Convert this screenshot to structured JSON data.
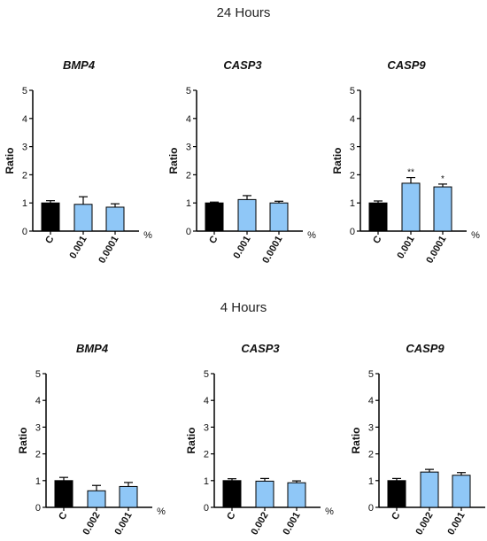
{
  "figure": {
    "section_titles": [
      "24 Hours",
      "4 Hours"
    ]
  },
  "colors": {
    "control": "#000000",
    "treatment": "#8fc7f7",
    "axis": "#000000"
  },
  "chart_data": [
    {
      "type": "bar",
      "title": "BMP4",
      "section": "24 Hours",
      "row": 0,
      "col": 0,
      "categories": [
        "C",
        "0.001",
        "0.0001"
      ],
      "values": [
        1.0,
        0.95,
        0.85
      ],
      "errors": [
        0.08,
        0.27,
        0.12
      ],
      "significance": [
        "",
        "",
        ""
      ],
      "ylabel": "Ratio",
      "unit": "%",
      "ylim": [
        0,
        5
      ],
      "yticks": [
        0,
        1,
        2,
        3,
        4,
        5
      ]
    },
    {
      "type": "bar",
      "title": "CASP3",
      "section": "24 Hours",
      "row": 0,
      "col": 1,
      "categories": [
        "C",
        "0.001",
        "0.0001"
      ],
      "values": [
        1.0,
        1.12,
        1.0
      ],
      "errors": [
        0.03,
        0.14,
        0.06
      ],
      "significance": [
        "",
        "",
        ""
      ],
      "ylabel": "Ratio",
      "unit": "%",
      "ylim": [
        0,
        5
      ],
      "yticks": [
        0,
        1,
        2,
        3,
        4,
        5
      ]
    },
    {
      "type": "bar",
      "title": "CASP9",
      "section": "24 Hours",
      "row": 0,
      "col": 2,
      "categories": [
        "C",
        "0.001",
        "0.0001"
      ],
      "values": [
        1.0,
        1.7,
        1.57
      ],
      "errors": [
        0.07,
        0.2,
        0.1
      ],
      "significance": [
        "",
        "**",
        "*"
      ],
      "ylabel": "Ratio",
      "unit": "%",
      "ylim": [
        0,
        5
      ],
      "yticks": [
        0,
        1,
        2,
        3,
        4,
        5
      ]
    },
    {
      "type": "bar",
      "title": "BMP4",
      "section": "4 Hours",
      "row": 1,
      "col": 0,
      "categories": [
        "C",
        "0.002",
        "0.001"
      ],
      "values": [
        1.0,
        0.62,
        0.78
      ],
      "errors": [
        0.12,
        0.2,
        0.15
      ],
      "significance": [
        "",
        "",
        ""
      ],
      "ylabel": "Ratio",
      "unit": "%",
      "ylim": [
        0,
        5
      ],
      "yticks": [
        0,
        1,
        2,
        3,
        4,
        5
      ]
    },
    {
      "type": "bar",
      "title": "CASP3",
      "section": "4 Hours",
      "row": 1,
      "col": 1,
      "categories": [
        "C",
        "0.002",
        "0.001"
      ],
      "values": [
        1.0,
        0.98,
        0.92
      ],
      "errors": [
        0.07,
        0.1,
        0.07
      ],
      "significance": [
        "",
        "",
        ""
      ],
      "ylabel": "Ratio",
      "unit": "%",
      "ylim": [
        0,
        5
      ],
      "yticks": [
        0,
        1,
        2,
        3,
        4,
        5
      ]
    },
    {
      "type": "bar",
      "title": "CASP9",
      "section": "4 Hours",
      "row": 1,
      "col": 2,
      "categories": [
        "C",
        "0.002",
        "0.001"
      ],
      "values": [
        1.0,
        1.32,
        1.2
      ],
      "errors": [
        0.08,
        0.1,
        0.1
      ],
      "significance": [
        "",
        "",
        ""
      ],
      "ylabel": "Ratio",
      "unit": "%",
      "ylim": [
        0,
        5
      ],
      "yticks": [
        0,
        1,
        2,
        3,
        4,
        5
      ]
    }
  ]
}
